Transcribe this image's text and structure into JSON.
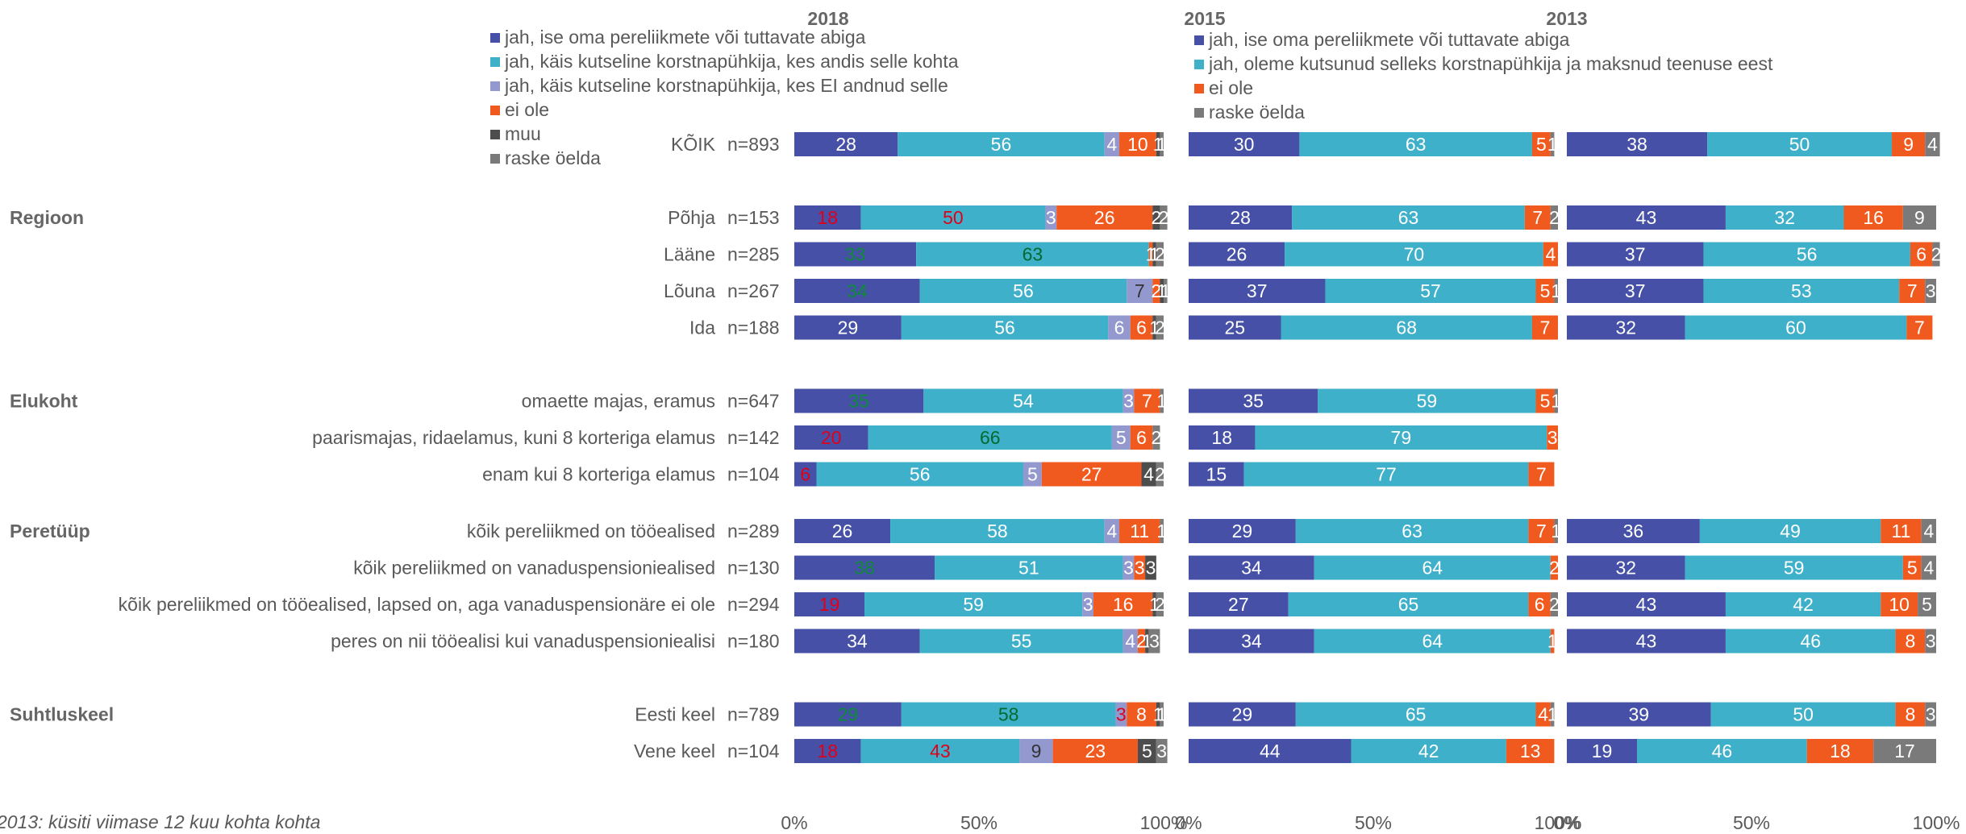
{
  "chart_data": {
    "type": "bar",
    "stacked": true,
    "orientation": "horizontal",
    "note": "2013: küsiti viimase 12 kuu kohta kohta",
    "xlim": [
      0,
      100
    ],
    "xticks": [
      "0%",
      "50%",
      "100%"
    ],
    "colors": {
      "self": "#4650a6",
      "paid": "#3fb0c9",
      "notpaid": "#9399cf",
      "no": "#f05a1e",
      "other": "#4d4d4d",
      "dk": "#7a7a7a",
      "label_white": "#ffffff",
      "label_red": "#e0001a",
      "label_green": "#0e8a3a",
      "label_darkgreen": "#006b2e",
      "label_dark": "#333333",
      "group": "#666666",
      "text": "#595959"
    },
    "groups": [
      {
        "name": "Regioon",
        "row": "Põhja"
      },
      {
        "name": "Elukoht",
        "row": "omaette majas, eramus"
      },
      {
        "name": "Peretüüp",
        "row": "kõik pereliikmed on tööealised"
      },
      {
        "name": "Suhtluskeel",
        "row": "Eesti keel"
      }
    ],
    "rows": [
      {
        "label": "KÕIK",
        "n": "n=893",
        "gap": 0
      },
      {
        "label": "Põhja",
        "n": "n=153",
        "gap": 1
      },
      {
        "label": "Lääne",
        "n": "n=285",
        "gap": 0
      },
      {
        "label": "Lõuna",
        "n": "n=267",
        "gap": 0
      },
      {
        "label": "Ida",
        "n": "n=188",
        "gap": 0
      },
      {
        "label": "omaette majas, eramus",
        "n": "n=647",
        "gap": 1
      },
      {
        "label": "paarismajas, ridaelamus, kuni 8 korteriga elamus",
        "n": "n=142",
        "gap": 0
      },
      {
        "label": "enam kui 8 korteriga elamus",
        "n": "n=104",
        "gap": 0
      },
      {
        "label": "kõik pereliikmed on tööealised",
        "n": "n=289",
        "gap": 0.55
      },
      {
        "label": "kõik pereliikmed on vanaduspensioniealised",
        "n": "n=130",
        "gap": 0
      },
      {
        "label": "kõik pereliikmed on tööealised, lapsed on, aga vanaduspensionäre ei ole",
        "n": "n=294",
        "gap": 0
      },
      {
        "label": "peres on nii tööealisi kui vanaduspensioniealisi",
        "n": "n=180",
        "gap": 0
      },
      {
        "label": "Eesti keel",
        "n": "n=789",
        "gap": 1
      },
      {
        "label": "Vene keel",
        "n": "n=104",
        "gap": 0
      }
    ],
    "panels": [
      {
        "year": "2018",
        "legend": [
          {
            "key": "self",
            "label": "jah, ise oma pereliikmete või tuttavate abiga"
          },
          {
            "key": "paid",
            "label": "jah, käis kutseline korstnapühkija, kes andis selle kohta"
          },
          {
            "key": "notpaid",
            "label": "jah, käis kutseline korstnapühkija, kes EI andnud selle"
          },
          {
            "key": "no",
            "label": "ei ole"
          },
          {
            "key": "other",
            "label": "muu"
          },
          {
            "key": "dk",
            "label": "raske öelda"
          }
        ],
        "series": [
          {
            "key": "self",
            "values": [
              28,
              18,
              33,
              34,
              29,
              35,
              20,
              6,
              26,
              38,
              19,
              34,
              29,
              18
            ],
            "label_colors": {
              "1": "label_red",
              "2": "label_green",
              "3": "label_green",
              "5": "label_green",
              "6": "label_red",
              "7": "label_red",
              "9": "label_green",
              "10": "label_red",
              "12": "label_green",
              "13": "label_red"
            }
          },
          {
            "key": "paid",
            "values": [
              56,
              50,
              63,
              56,
              56,
              54,
              66,
              56,
              58,
              51,
              59,
              55,
              58,
              43
            ],
            "label_colors": {
              "1": "label_red",
              "2": "label_darkgreen",
              "6": "label_darkgreen",
              "12": "label_darkgreen",
              "13": "label_red"
            }
          },
          {
            "key": "notpaid",
            "values": [
              4,
              3,
              0,
              7,
              6,
              3,
              5,
              5,
              4,
              3,
              3,
              4,
              3,
              9
            ],
            "label_colors": {
              "3": "label_dark",
              "12": "label_red",
              "13": "label_dark"
            }
          },
          {
            "key": "no",
            "values": [
              10,
              26,
              1,
              2,
              6,
              7,
              6,
              27,
              11,
              3,
              16,
              2,
              8,
              23
            ],
            "label_colors": {}
          },
          {
            "key": "other",
            "values": [
              1,
              2,
              1,
              1,
              1,
              0,
              0,
              4,
              0,
              3,
              1,
              1,
              1,
              5
            ],
            "label_colors": {}
          },
          {
            "key": "dk",
            "values": [
              1,
              2,
              2,
              1,
              2,
              1,
              2,
              2,
              1,
              0,
              2,
              3,
              1,
              3
            ],
            "label_colors": {}
          }
        ]
      },
      {
        "year": "2015",
        "legend": [
          {
            "key": "self",
            "label": "jah, ise oma pereliikmete või tuttavate abiga"
          },
          {
            "key": "paid",
            "label": "jah, oleme kutsunud selleks korstnapühkija ja maksnud teenuse eest"
          },
          {
            "key": "no",
            "label": "ei ole"
          },
          {
            "key": "dk",
            "label": "raske öelda"
          }
        ],
        "series": [
          {
            "key": "self",
            "values": [
              30,
              28,
              26,
              37,
              25,
              35,
              18,
              15,
              29,
              34,
              27,
              34,
              29,
              44
            ],
            "label_colors": {}
          },
          {
            "key": "paid",
            "values": [
              63,
              63,
              70,
              57,
              68,
              59,
              79,
              77,
              63,
              64,
              65,
              64,
              65,
              42
            ],
            "label_colors": {}
          },
          {
            "key": "no",
            "values": [
              5,
              7,
              4,
              5,
              7,
              5,
              3,
              7,
              7,
              2,
              6,
              1,
              4,
              13
            ],
            "label_colors": {}
          },
          {
            "key": "dk",
            "values": [
              1,
              2,
              0,
              1,
              0,
              1,
              0,
              0,
              1,
              0,
              2,
              0,
              1,
              0
            ],
            "label_colors": {}
          }
        ]
      },
      {
        "year": "2013",
        "legend": [],
        "series": [
          {
            "key": "self",
            "values": [
              38,
              43,
              37,
              37,
              32,
              null,
              null,
              null,
              36,
              32,
              43,
              43,
              39,
              19
            ],
            "label_colors": {}
          },
          {
            "key": "paid",
            "values": [
              50,
              32,
              56,
              53,
              60,
              null,
              null,
              null,
              49,
              59,
              42,
              46,
              50,
              46
            ],
            "label_colors": {}
          },
          {
            "key": "no",
            "values": [
              9,
              16,
              6,
              7,
              7,
              null,
              null,
              null,
              11,
              5,
              10,
              8,
              8,
              18
            ],
            "label_colors": {}
          },
          {
            "key": "dk",
            "values": [
              4,
              9,
              2,
              3,
              0,
              null,
              null,
              null,
              4,
              4,
              5,
              3,
              3,
              17
            ],
            "label_colors": {}
          }
        ]
      }
    ]
  }
}
